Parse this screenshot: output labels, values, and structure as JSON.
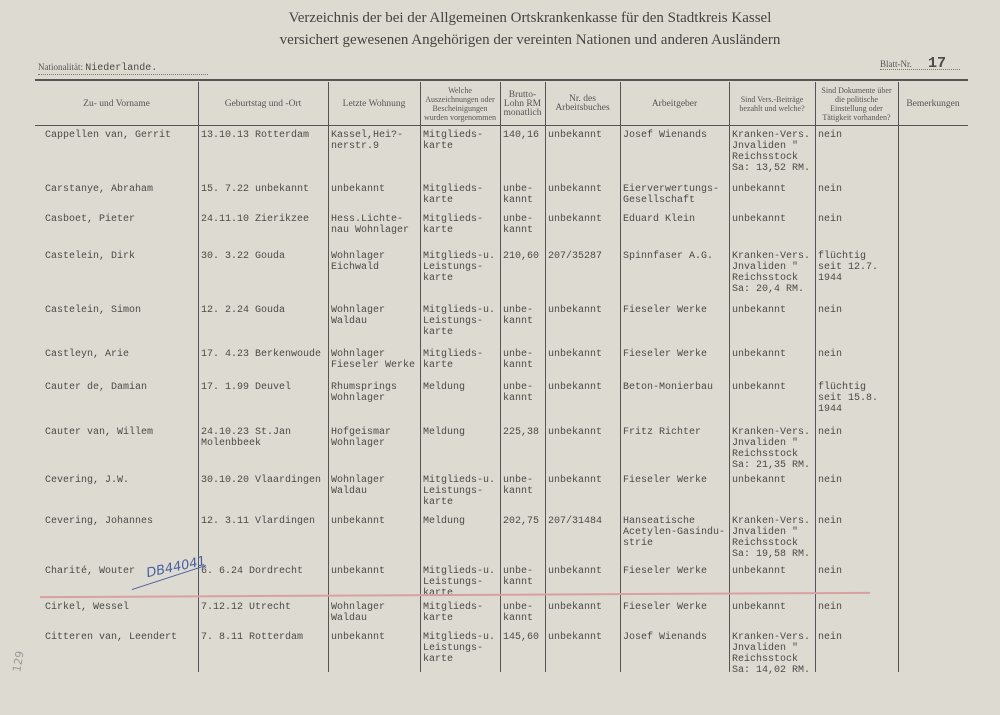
{
  "header": {
    "title_line1": "Verzeichnis der bei der Allgemeinen Ortskrankenkasse für den Stadtkreis Kassel",
    "title_line2": "versichert gewesenen Angehörigen der vereinten Nationen und anderen Ausländern",
    "nationality_label": "Nationalität:",
    "nationality_value": "Niederlande.",
    "sheet_label": "Blatt-Nr.",
    "sheet_value": "17"
  },
  "columns": [
    "Zu- und Vorname",
    "Geburtstag und -Ort",
    "Letzte Wohnung",
    "Welche Auszeichnungen oder Bescheinigungen wurden vorgenommen",
    "Brutto-Lohn RM monatlich",
    "Nr. des Arbeitsbuches",
    "Arbeitgeber",
    "Sind Vers.-Beiträge bezahlt und welche?",
    "Sind Dokumente über die politische Einstellung oder Tätigkeit vorhanden?",
    "Bemerkungen"
  ],
  "rows": [
    [
      "Cappellen van, Gerrit",
      "13.10.13 Rotterdam",
      "Kassel,Hei?-\nnerstr.9",
      "Mitglieds-\nkarte",
      "140,16",
      "unbekannt",
      "Josef Wienands",
      "Kranken-Vers.\nJnvaliden \"\nReichsstock\nSa: 13,52 RM.",
      "nein",
      ""
    ],
    [
      "Carstanye, Abraham",
      "15. 7.22 unbekannt",
      "unbekannt",
      "Mitglieds-\nkarte",
      "unbe-\nkannt",
      "unbekannt",
      "Eierverwertungs-\nGesellschaft",
      "unbekannt",
      "nein",
      ""
    ],
    [
      "Casboet, Pieter",
      "24.11.10 Zierikzee",
      "Hess.Lichte-\nnau Wohnlager",
      "Mitglieds-\nkarte",
      "unbe-\nkannt",
      "unbekannt",
      "Eduard Klein",
      "unbekannt",
      "nein",
      ""
    ],
    [
      "Castelein, Dirk",
      "30. 3.22 Gouda",
      "Wohnlager\nEichwald",
      "Mitglieds-u.\nLeistungs-\nkarte",
      "210,60",
      "207/35287",
      "Spinnfaser A.G.",
      "Kranken-Vers.\nJnvaliden \"\nReichsstock\nSa: 20,4 RM.",
      "flüchtig\nseit 12.7.\n1944",
      ""
    ],
    [
      "Castelein, Simon",
      "12. 2.24 Gouda",
      "Wohnlager\nWaldau",
      "Mitglieds-u.\nLeistungs-\nkarte",
      "unbe-\nkannt",
      "unbekannt",
      "Fieseler Werke",
      "unbekannt",
      "nein",
      ""
    ],
    [
      "Castleyn, Arie",
      "17. 4.23 Berkenwoude",
      "Wohnlager\nFieseler Werke",
      "Mitglieds-\nkarte",
      "unbe-\nkannt",
      "unbekannt",
      "Fieseler Werke",
      "unbekannt",
      "nein",
      ""
    ],
    [
      "Cauter de, Damian",
      "17. 1.99 Deuvel",
      "Rhumsprings\nWohnlager",
      "Meldung",
      "unbe-\nkannt",
      "unbekannt",
      "Beton-Monierbau",
      "unbekannt",
      "flüchtig\nseit 15.8.\n1944",
      ""
    ],
    [
      "Cauter van, Willem",
      "24.10.23 St.Jan\n         Molenbbeek",
      "Hofgeismar\nWohnlager",
      "Meldung",
      "225,38",
      "unbekannt",
      "Fritz Richter",
      "Kranken-Vers.\nJnvaliden \"\nReichsstock\nSa: 21,35 RM.",
      "nein",
      ""
    ],
    [
      "Cevering, J.W.",
      "30.10.20 Vlaardingen",
      "Wohnlager\nWaldau",
      "Mitglieds-u.\nLeistungs-\nkarte",
      "unbe-\nkannt",
      "unbekannt",
      "Fieseler Werke",
      "unbekannt",
      "nein",
      ""
    ],
    [
      "Cevering, Johannes",
      "12. 3.11 Vlardingen",
      "unbekannt",
      "Meldung",
      "202,75",
      "207/31484",
      "Hanseatische\nAcetylen-Gasindu-\nstrie",
      "Kranken-Vers.\nJnvaliden \"\nReichsstock\nSa: 19,58 RM.",
      "nein",
      ""
    ],
    [
      "Charité, Wouter",
      "6. 6.24 Dordrecht",
      "unbekannt",
      "Mitglieds-u.\nLeistungs-\nkarte",
      "unbe-\nkannt",
      "unbekannt",
      "Fieseler Werke",
      "unbekannt",
      "nein",
      ""
    ],
    [
      "Cirkel, Wessel",
      "7.12.12 Utrecht",
      "Wohnlager\nWaldau",
      "Mitglieds-\nkarte",
      "unbe-\nkannt",
      "unbekannt",
      "Fieseler Werke",
      "unbekannt",
      "nein",
      ""
    ],
    [
      "Citteren van, Leendert",
      "7. 8.11 Rotterdam",
      "unbekannt",
      "Mitglieds-u.\nLeistungs-\nkarte",
      "145,60",
      "unbekannt",
      "Josef Wienands",
      "Kranken-Vers.\nJnvaliden \"\nReichsstock\nSa: 14,02 RM.",
      "nein",
      ""
    ]
  ],
  "annotations": {
    "handwritten_number": "DB44041",
    "margin_number": "129"
  },
  "colors": {
    "paper": "#dddad1",
    "ink": "#4a4a48",
    "red_line": "#d9a0a0",
    "blue_pen": "#4a5fa0"
  }
}
